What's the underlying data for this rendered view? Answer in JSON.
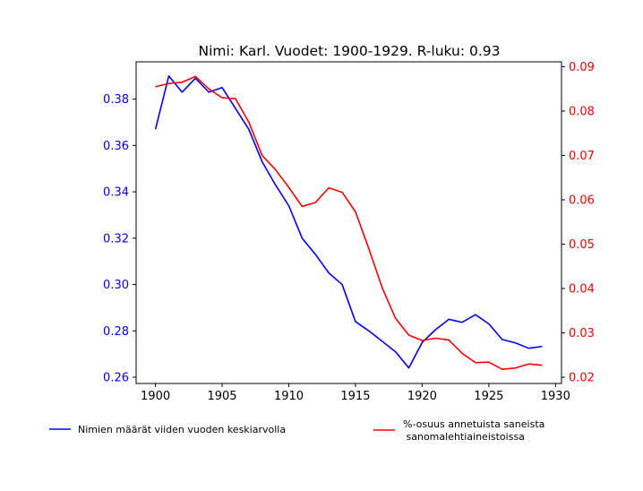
{
  "chart_data": {
    "type": "line",
    "title": "Nimi: Karl. Vuodet: 1900-1929. R-luku: 0.93",
    "xlabel": "",
    "x": [
      1900,
      1901,
      1902,
      1903,
      1904,
      1905,
      1906,
      1907,
      1908,
      1909,
      1910,
      1911,
      1912,
      1913,
      1914,
      1915,
      1916,
      1917,
      1918,
      1919,
      1920,
      1921,
      1922,
      1923,
      1924,
      1925,
      1926,
      1927,
      1928,
      1929
    ],
    "xlim": [
      1898.55,
      1930.45
    ],
    "xticks": [
      1900,
      1905,
      1910,
      1915,
      1920,
      1925,
      1930
    ],
    "grid": false,
    "legend_placement": "below",
    "series": [
      {
        "name": "Nimien määrät viiden vuoden keskiarvolla",
        "axis": "left",
        "color": "#0000ff",
        "values": [
          0.367,
          0.39,
          0.383,
          0.389,
          0.383,
          0.385,
          0.376,
          0.367,
          0.353,
          0.343,
          0.334,
          0.32,
          0.313,
          0.305,
          0.3,
          0.284,
          0.28,
          0.2755,
          0.271,
          0.264,
          0.275,
          0.2805,
          0.285,
          0.2837,
          0.287,
          0.283,
          0.2763,
          0.2748,
          0.2725,
          0.2733
        ]
      },
      {
        "name": "%-osuus annetuista saneista\n sanomalehtiaineistoissa",
        "axis": "right",
        "color": "#ff0000",
        "values": [
          0.0855,
          0.0862,
          0.0865,
          0.0878,
          0.085,
          0.083,
          0.0828,
          0.0775,
          0.07,
          0.0668,
          0.0628,
          0.0585,
          0.0594,
          0.0627,
          0.0617,
          0.0573,
          0.049,
          0.0402,
          0.0333,
          0.0295,
          0.0283,
          0.0288,
          0.0284,
          0.0254,
          0.0233,
          0.0234,
          0.0218,
          0.0221,
          0.023,
          0.0227
        ]
      }
    ],
    "left_axis": {
      "ylim": [
        0.2573,
        0.3961
      ],
      "ticks": [
        0.26,
        0.28,
        0.3,
        0.32,
        0.34,
        0.36,
        0.38
      ],
      "tick_labels": [
        "0.26",
        "0.28",
        "0.30",
        "0.32",
        "0.34",
        "0.36",
        "0.38"
      ],
      "color": "#0000ff"
    },
    "right_axis": {
      "ylim": [
        0.0186,
        0.0911
      ],
      "ticks": [
        0.02,
        0.03,
        0.04,
        0.05,
        0.06,
        0.07,
        0.08,
        0.09
      ],
      "tick_labels": [
        "0.02",
        "0.03",
        "0.04",
        "0.05",
        "0.06",
        "0.07",
        "0.08",
        "0.09"
      ],
      "color": "#ff0000"
    }
  }
}
